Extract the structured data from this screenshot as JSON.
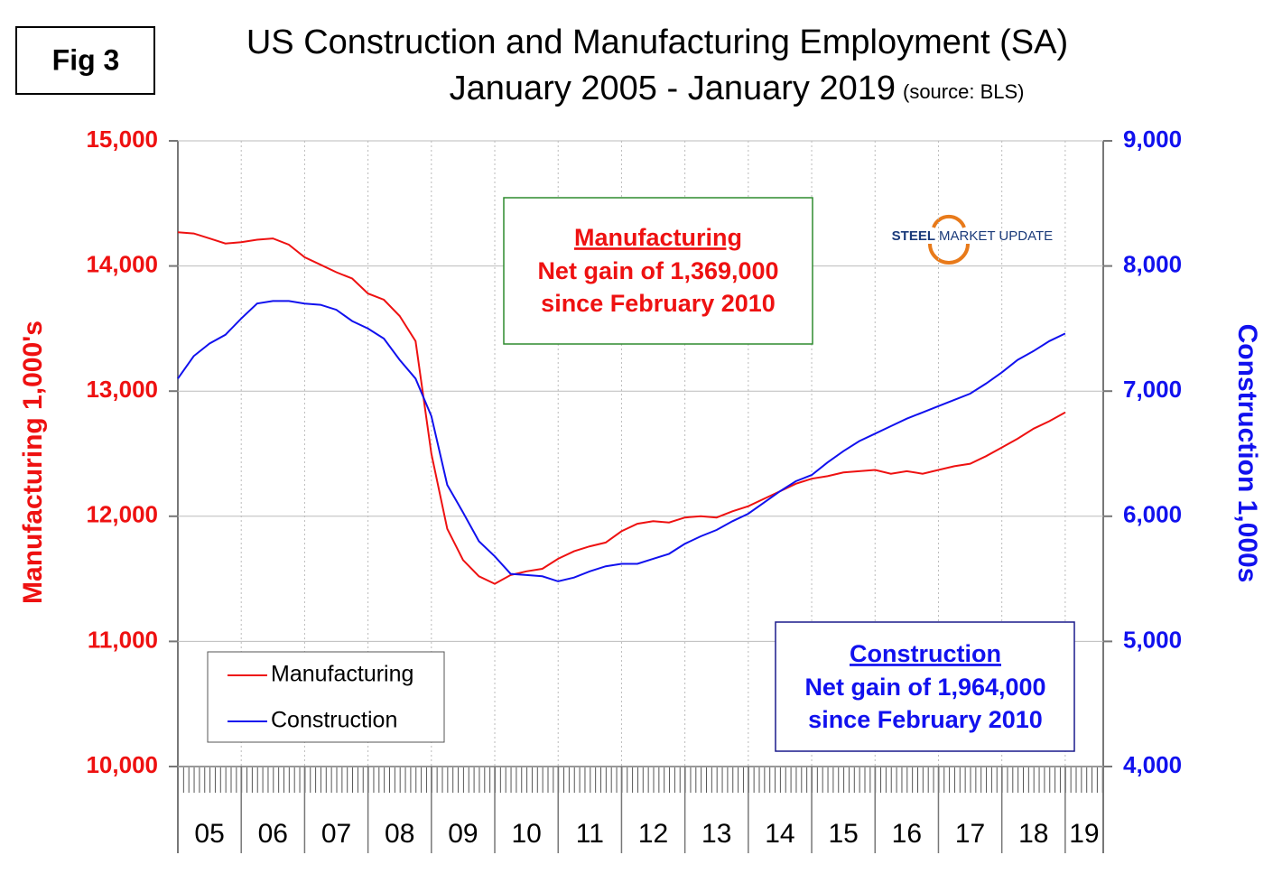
{
  "chart_data": {
    "type": "line",
    "figure_label": "Fig 3",
    "title": "US Construction and Manufacturing Employment (SA)",
    "subtitle": "January 2005 - January 2019",
    "source": "(source: BLS)",
    "logo": [
      "STEEL",
      "MARKET UPDATE"
    ],
    "ylabel": "Manufacturing  1,000's",
    "y2label": "Construction 1,000s",
    "xlim": [
      2005,
      2019.6
    ],
    "xticks": [
      {
        "value": 2005,
        "label": "05"
      },
      {
        "value": 2006,
        "label": "06"
      },
      {
        "value": 2007,
        "label": "07"
      },
      {
        "value": 2008,
        "label": "08"
      },
      {
        "value": 2009,
        "label": "09"
      },
      {
        "value": 2010,
        "label": "10"
      },
      {
        "value": 2011,
        "label": "11"
      },
      {
        "value": 2012,
        "label": "12"
      },
      {
        "value": 2013,
        "label": "13"
      },
      {
        "value": 2014,
        "label": "14"
      },
      {
        "value": 2015,
        "label": "15"
      },
      {
        "value": 2016,
        "label": "16"
      },
      {
        "value": 2017,
        "label": "17"
      },
      {
        "value": 2018,
        "label": "18"
      },
      {
        "value": 2019,
        "label": "19"
      }
    ],
    "ylim": [
      10000,
      15000
    ],
    "yticks": [
      {
        "value": 10000,
        "label": "10,000"
      },
      {
        "value": 11000,
        "label": "11,000"
      },
      {
        "value": 12000,
        "label": "12,000"
      },
      {
        "value": 13000,
        "label": "13,000"
      },
      {
        "value": 14000,
        "label": "14,000"
      },
      {
        "value": 15000,
        "label": "15,000"
      }
    ],
    "y2lim": [
      4000,
      9000
    ],
    "y2ticks": [
      {
        "value": 4000,
        "label": "4,000"
      },
      {
        "value": 5000,
        "label": "5,000"
      },
      {
        "value": 6000,
        "label": "6,000"
      },
      {
        "value": 7000,
        "label": "7,000"
      },
      {
        "value": 8000,
        "label": "8,000"
      },
      {
        "value": 9000,
        "label": "9,000"
      }
    ],
    "grid": true,
    "legend": "lower left",
    "x": [
      2005,
      2005.25,
      2005.5,
      2005.75,
      2006,
      2006.25,
      2006.5,
      2006.75,
      2007,
      2007.25,
      2007.5,
      2007.75,
      2008,
      2008.25,
      2008.5,
      2008.75,
      2009,
      2009.25,
      2009.5,
      2009.75,
      2010,
      2010.25,
      2010.5,
      2010.75,
      2011,
      2011.25,
      2011.5,
      2011.75,
      2012,
      2012.25,
      2012.5,
      2012.75,
      2013,
      2013.25,
      2013.5,
      2013.75,
      2014,
      2014.25,
      2014.5,
      2014.75,
      2015,
      2015.25,
      2015.5,
      2015.75,
      2016,
      2016.25,
      2016.5,
      2016.75,
      2017,
      2017.25,
      2017.5,
      2017.75,
      2018,
      2018.25,
      2018.5,
      2018.75,
      2019
    ],
    "series": [
      {
        "name": "Manufacturing",
        "color": "#ee1111",
        "values": [
          14270,
          14260,
          14220,
          14180,
          14190,
          14210,
          14220,
          14170,
          14070,
          14010,
          13950,
          13900,
          13780,
          13730,
          13600,
          13400,
          12500,
          11900,
          11650,
          11520,
          11460,
          11530,
          11560,
          11580,
          11660,
          11720,
          11760,
          11790,
          11880,
          11940,
          11960,
          11950,
          11990,
          12000,
          11990,
          12040,
          12080,
          12140,
          12200,
          12260,
          12300,
          12320,
          12350,
          12360,
          12370,
          12340,
          12360,
          12340,
          12370,
          12400,
          12420,
          12480,
          12550,
          12620,
          12700,
          12760,
          12830
        ]
      },
      {
        "name": "Construction",
        "color": "#1111ee",
        "axis": "y2",
        "values": [
          7100,
          7280,
          7380,
          7450,
          7580,
          7700,
          7720,
          7720,
          7700,
          7690,
          7650,
          7560,
          7500,
          7420,
          7250,
          7100,
          6800,
          6250,
          6030,
          5800,
          5680,
          5540,
          5530,
          5520,
          5480,
          5510,
          5560,
          5600,
          5620,
          5620,
          5660,
          5700,
          5780,
          5840,
          5890,
          5960,
          6020,
          6110,
          6200,
          6280,
          6330,
          6430,
          6520,
          6600,
          6660,
          6720,
          6780,
          6830,
          6880,
          6930,
          6980,
          7060,
          7150,
          7250,
          7320,
          7400,
          7460
        ]
      }
    ],
    "annotations": [
      {
        "title": "Manufacturing",
        "lines": [
          "Net gain of 1,369,000",
          "since February 2010"
        ],
        "color": "#ee1111",
        "border": "#2e8b2e"
      },
      {
        "title": "Construction",
        "lines": [
          "Net gain of 1,964,000",
          "since February 2010"
        ],
        "color": "#1111ee",
        "border": "#1a1a8c"
      }
    ]
  }
}
